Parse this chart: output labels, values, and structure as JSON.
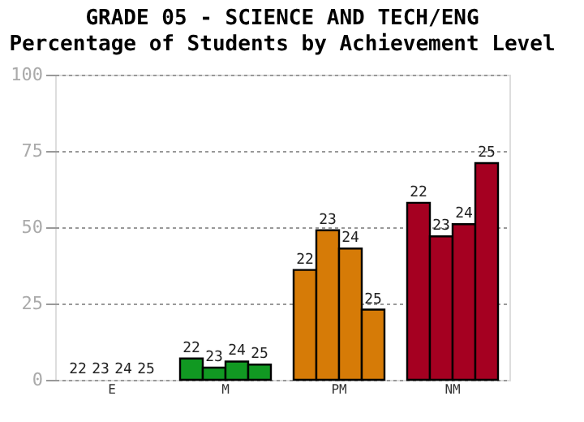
{
  "chart_data": {
    "type": "bar",
    "title": "GRADE 05 - SCIENCE AND TECH/ENG",
    "subtitle": "Percentage of Students by Achievement Level",
    "categories": [
      "E",
      "M",
      "PM",
      "NM"
    ],
    "series": [
      {
        "name": "22",
        "colors": [
          "#119922",
          "#119922",
          "#d67b07",
          "#a50021"
        ],
        "values": [
          0,
          7,
          36,
          58
        ]
      },
      {
        "name": "23",
        "colors": [
          "#119922",
          "#119922",
          "#d67b07",
          "#a50021"
        ],
        "values": [
          0,
          4,
          49,
          47
        ]
      },
      {
        "name": "24",
        "colors": [
          "#119922",
          "#119922",
          "#d67b07",
          "#a50021"
        ],
        "values": [
          0,
          6,
          43,
          51
        ]
      },
      {
        "name": "25",
        "colors": [
          "#119922",
          "#119922",
          "#d67b07",
          "#a50021"
        ],
        "values": [
          0,
          5,
          23,
          71
        ]
      }
    ],
    "ylim": [
      0,
      100
    ],
    "yticks": [
      0,
      25,
      50,
      75,
      100
    ],
    "grid": "y"
  }
}
